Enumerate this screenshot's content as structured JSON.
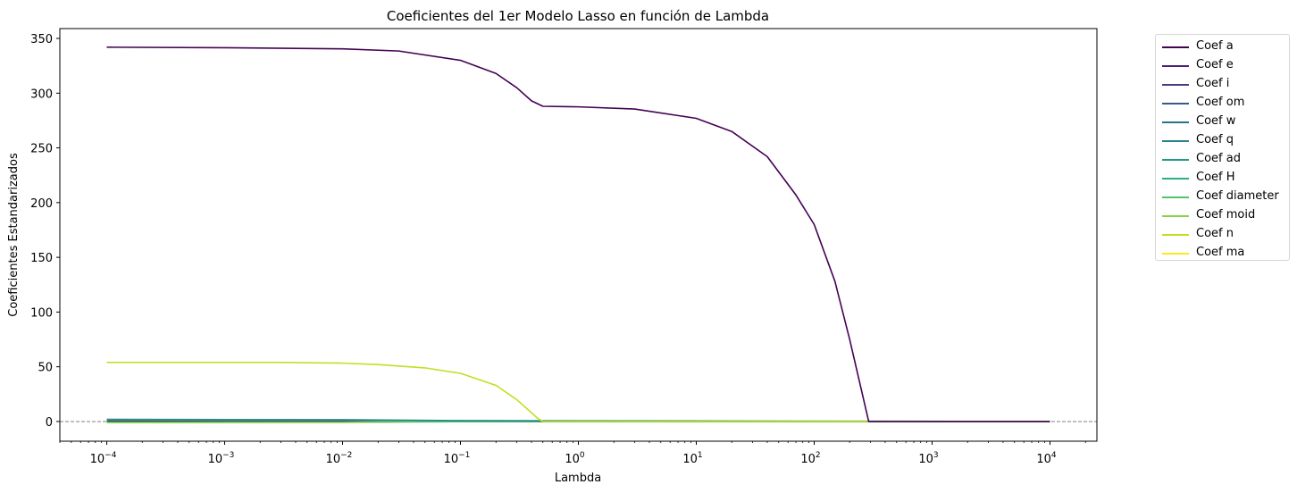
{
  "chart_data": {
    "type": "line",
    "title": "Coeficientes del 1er Modelo Lasso en función de Lambda",
    "xlabel": "Lambda",
    "ylabel": "Coeficientes Estandarizados",
    "x_scale": "log",
    "xlim": [
      4e-05,
      25000
    ],
    "ylim": [
      -18,
      359
    ],
    "x_ticks": [
      0.0001,
      0.001,
      0.01,
      0.1,
      1,
      10,
      100,
      1000,
      10000
    ],
    "x_tick_labels": [
      {
        "base": "10",
        "exp": "−4"
      },
      {
        "base": "10",
        "exp": "−3"
      },
      {
        "base": "10",
        "exp": "−2"
      },
      {
        "base": "10",
        "exp": "−1"
      },
      {
        "base": "10",
        "exp": "0"
      },
      {
        "base": "10",
        "exp": "1"
      },
      {
        "base": "10",
        "exp": "2"
      },
      {
        "base": "10",
        "exp": "3"
      },
      {
        "base": "10",
        "exp": "4"
      }
    ],
    "y_ticks": [
      0,
      50,
      100,
      150,
      200,
      250,
      300,
      350
    ],
    "y_tick_labels": [
      "0",
      "50",
      "100",
      "150",
      "200",
      "250",
      "300",
      "350"
    ],
    "reference_line": {
      "y": 0,
      "style": "dashed",
      "color": "#808080"
    },
    "grid": false,
    "legend_placement": "outside upper right",
    "series": [
      {
        "name": "Coef a",
        "color": "#440154",
        "x": [
          0.0001,
          0.001,
          0.01,
          0.03,
          0.1,
          0.2,
          0.3,
          0.4,
          0.5,
          1,
          3,
          10,
          20,
          40,
          70,
          100,
          150,
          200,
          250,
          290,
          10000
        ],
        "y": [
          342,
          341.5,
          340.5,
          338.5,
          330,
          318,
          305,
          293,
          288,
          287.5,
          285.5,
          277,
          265,
          242,
          207,
          180,
          128,
          75,
          30,
          0,
          0
        ]
      },
      {
        "name": "Coef e",
        "color": "#482173",
        "x": [
          0.0001,
          0.001,
          0.01,
          0.1,
          0.5,
          10000
        ],
        "y": [
          0.6,
          0.6,
          0.5,
          0.3,
          0,
          0
        ]
      },
      {
        "name": "Coef i",
        "color": "#433e85",
        "x": [
          0.0001,
          0.01,
          0.1,
          10000
        ],
        "y": [
          0.2,
          0.2,
          0,
          0
        ]
      },
      {
        "name": "Coef om",
        "color": "#38588c",
        "x": [
          0.0001,
          10000
        ],
        "y": [
          0,
          0
        ]
      },
      {
        "name": "Coef w",
        "color": "#2d708e",
        "x": [
          0.0001,
          10000
        ],
        "y": [
          0,
          0
        ]
      },
      {
        "name": "Coef q",
        "color": "#25858e",
        "x": [
          0.0001,
          0.01,
          0.1,
          10000
        ],
        "y": [
          2.0,
          1.6,
          0.8,
          0
        ]
      },
      {
        "name": "Coef ad",
        "color": "#1e9b8a",
        "x": [
          0.0001,
          0.01,
          0.1,
          10000
        ],
        "y": [
          -0.8,
          -0.6,
          -0.2,
          0
        ]
      },
      {
        "name": "Coef H",
        "color": "#2ab07f",
        "x": [
          0.0001,
          0.01,
          0.1,
          10000
        ],
        "y": [
          -0.4,
          -0.3,
          0,
          0
        ]
      },
      {
        "name": "Coef diameter",
        "color": "#52c569",
        "x": [
          0.0001,
          0.01,
          0.05,
          10000
        ],
        "y": [
          1.5,
          1.2,
          0,
          0
        ]
      },
      {
        "name": "Coef moid",
        "color": "#86d549",
        "x": [
          0.0001,
          0.01,
          0.05,
          10000
        ],
        "y": [
          -1.0,
          -0.8,
          0,
          0
        ]
      },
      {
        "name": "Coef n",
        "color": "#c2df23",
        "x": [
          0.0001,
          0.001,
          0.003,
          0.01,
          0.02,
          0.05,
          0.1,
          0.2,
          0.3,
          0.4,
          0.45,
          0.5,
          1,
          10000
        ],
        "y": [
          54,
          54,
          54,
          53.3,
          52,
          49,
          44,
          33,
          20,
          8,
          3,
          0,
          0,
          0
        ]
      },
      {
        "name": "Coef ma",
        "color": "#fde725",
        "x": [
          0.0001,
          10000
        ],
        "y": [
          0,
          0
        ]
      }
    ]
  }
}
